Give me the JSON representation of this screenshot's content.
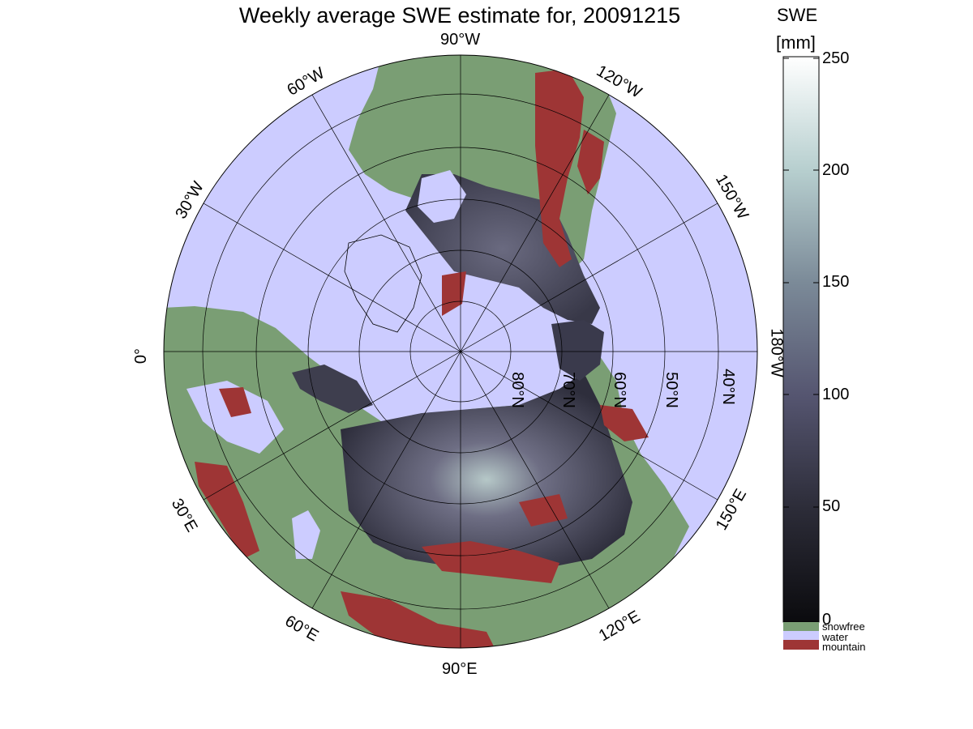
{
  "title": "Weekly average SWE estimate for, 20091215",
  "map": {
    "longitude_labels": [
      "90°W",
      "120°W",
      "150°W",
      "180°W",
      "150°E",
      "120°E",
      "90°E",
      "60°E",
      "30°E",
      "0°",
      "30°W",
      "60°W"
    ],
    "latitude_labels": [
      "80°N",
      "70°N",
      "60°N",
      "50°N",
      "40°N"
    ]
  },
  "colorbar": {
    "title_line1": "SWE",
    "title_line2": "[mm]",
    "ticks": [
      "0",
      "50",
      "100",
      "150",
      "200",
      "250"
    ],
    "range": [
      0,
      250
    ],
    "legend": [
      {
        "label": "snowfree",
        "color": "#7a9e74"
      },
      {
        "label": "water",
        "color": "#ccccff"
      },
      {
        "label": "mountain",
        "color": "#9e3535"
      }
    ]
  },
  "colors": {
    "water": "#ccccff",
    "land": "#7a9e74",
    "mountain": "#9e3535",
    "snow_low": "#0d0d10",
    "snow_mid": "#4a4a5e",
    "snow_high": "#ffffff"
  }
}
